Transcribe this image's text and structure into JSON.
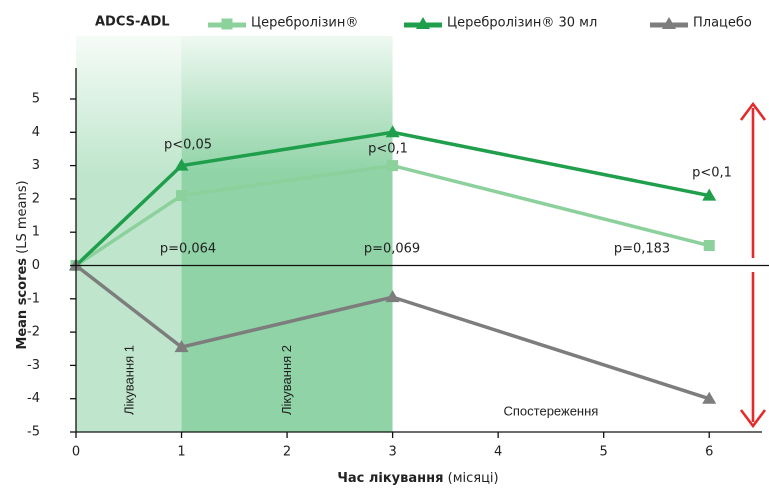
{
  "chart_data": {
    "type": "line",
    "title": "ADCS-ADL",
    "ylabel": "Mean scores",
    "ylabel_unit": "(LS means)",
    "xlabel": "Час лікування",
    "xlabel_unit": "(місяці)",
    "x": [
      0,
      1,
      3,
      6
    ],
    "series": [
      {
        "name": "Церебролізин®",
        "color": "#8cd09c",
        "marker": "square",
        "values": [
          0,
          2.1,
          3.0,
          0.6
        ]
      },
      {
        "name": "Церебролізин® 30 мл",
        "color": "#1f9f4c",
        "marker": "triangle",
        "values": [
          0,
          3.0,
          4.0,
          2.1
        ]
      },
      {
        "name": "Плацебо",
        "color": "#7d7d7d",
        "marker": "triangle",
        "values": [
          0,
          -2.45,
          -0.95,
          -4.0
        ]
      }
    ],
    "xlim": [
      0,
      6.5
    ],
    "ylim": [
      -5,
      5
    ],
    "xticks": [
      0,
      1,
      2,
      3,
      4,
      5,
      6
    ],
    "yticks": [
      -5,
      -4,
      -3,
      -2,
      -1,
      0,
      1,
      2,
      3,
      4,
      5
    ],
    "periods": [
      {
        "label": "Лікування 1",
        "start": 0,
        "end": 1,
        "fill": "#bfe6cc"
      },
      {
        "label": "Лікування 2",
        "start": 1,
        "end": 3,
        "fill": "#8fd3a6"
      },
      {
        "label": "Спостереження",
        "start": 3,
        "end": 6.5,
        "fill": "#ffffff"
      }
    ],
    "annotations": [
      "p<0,05",
      "p<0,1",
      "p<0,1",
      "p=0,064",
      "p=0,069",
      "p=0,183"
    ],
    "legend": "top"
  }
}
